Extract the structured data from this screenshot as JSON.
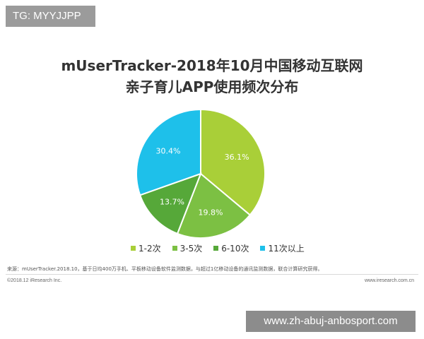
{
  "badge": {
    "text": "TG: MYYJJPP"
  },
  "chart_data": {
    "type": "pie",
    "title": "mUserTracker-2018年10月中国移动互联网",
    "subtitle": "亲子育儿APP使用频次分布",
    "categories": [
      "1-2次",
      "3-5次",
      "6-10次",
      "11次以上"
    ],
    "values": [
      36.1,
      19.8,
      13.7,
      30.4
    ],
    "value_labels": [
      "36.1%",
      "19.8%",
      "13.7%",
      "30.4%"
    ],
    "colors": [
      "#a9cf38",
      "#7cc043",
      "#56a839",
      "#1ec0ea"
    ],
    "legend_position": "bottom"
  },
  "source": {
    "text": "来源：mUserTracker.2018.10，基于日均400万手机、平板移动设备软件监测数据，与超过1亿移动设备的通讯监测数据，联合计算研究获得。"
  },
  "footer": {
    "copyright": "©2018.12 iResearch Inc.",
    "website": "www.iresearch.com.cn"
  },
  "watermark": {
    "text": "www.zh-abuj-anbosport.com"
  }
}
